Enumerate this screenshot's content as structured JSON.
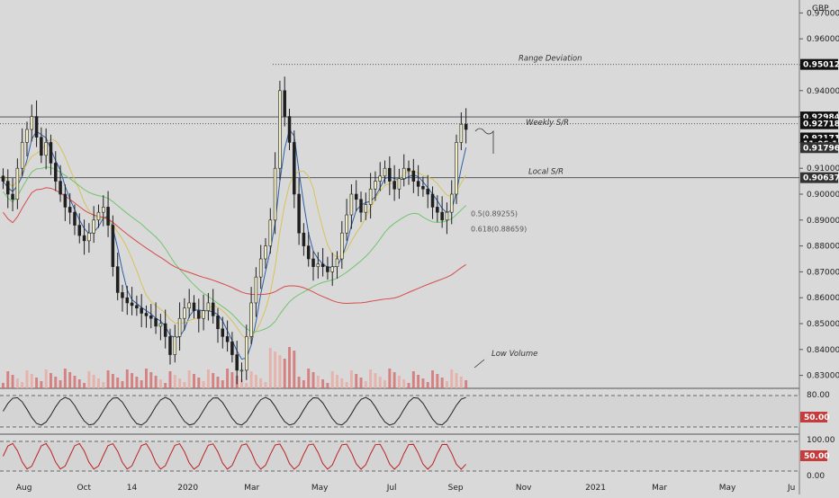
{
  "chart_data": {
    "type": "candlestick",
    "currency": "GBP",
    "y_axis": {
      "min": 0.825,
      "max": 0.975,
      "ticks": [
        "0.97000",
        "0.96000",
        "0.95000",
        "0.94000",
        "0.93000",
        "0.92000",
        "0.91000",
        "0.90000",
        "0.89000",
        "0.88000",
        "0.87000",
        "0.86000",
        "0.85000",
        "0.84000",
        "0.83000"
      ]
    },
    "x_axis": {
      "ticks": [
        {
          "label": "Aug",
          "t": 0.03
        },
        {
          "label": "Oct",
          "t": 0.105
        },
        {
          "label": "14",
          "t": 0.165
        },
        {
          "label": "2020",
          "t": 0.235
        },
        {
          "label": "Mar",
          "t": 0.315
        },
        {
          "label": "May",
          "t": 0.4
        },
        {
          "label": "Jul",
          "t": 0.49
        },
        {
          "label": "Sep",
          "t": 0.57
        },
        {
          "label": "Nov",
          "t": 0.655
        },
        {
          "label": "2021",
          "t": 0.745
        },
        {
          "label": "Mar",
          "t": 0.825
        },
        {
          "label": "May",
          "t": 0.91
        },
        {
          "label": "Ju",
          "t": 0.99
        }
      ]
    },
    "price_levels": [
      {
        "label": "Range Deviation",
        "value": 0.95012,
        "style": "dotted"
      },
      {
        "label": "Weekly S/R",
        "value": 0.92984,
        "style": "solid"
      },
      {
        "label": "",
        "value": 0.92718,
        "style": "dotted"
      },
      {
        "label": "Local S/R",
        "value": 0.90637,
        "style": "solid"
      }
    ],
    "price_tags": [
      {
        "value": "0.95012",
        "y": 0.95012,
        "bg": "#111111"
      },
      {
        "value": "0.92984",
        "y": 0.92984,
        "bg": "#111111"
      },
      {
        "value": "0.92718",
        "y": 0.92718,
        "bg": "#111111"
      },
      {
        "value": "0.92171",
        "y": 0.92171,
        "bg": "#111111"
      },
      {
        "value": "11:06:11",
        "y": 0.9195,
        "bg": "#111111"
      },
      {
        "value": "0.91796",
        "y": 0.91796,
        "bg": "#333333"
      },
      {
        "value": "0.90637",
        "y": 0.90637,
        "bg": "#333333"
      }
    ],
    "fib_levels": [
      {
        "label": "0.5(0.89255)",
        "value": 0.89255
      },
      {
        "label": "0.618(0.88659)",
        "value": 0.88659
      }
    ],
    "annotations": [
      {
        "text": "Range Deviation"
      },
      {
        "text": "Weekly S/R"
      },
      {
        "text": "Local S/R"
      },
      {
        "text": "Low Volume"
      }
    ],
    "closes": [
      0.905,
      0.9,
      0.898,
      0.91,
      0.92,
      0.925,
      0.93,
      0.922,
      0.915,
      0.92,
      0.912,
      0.905,
      0.9,
      0.895,
      0.893,
      0.888,
      0.884,
      0.882,
      0.885,
      0.89,
      0.893,
      0.895,
      0.888,
      0.872,
      0.862,
      0.86,
      0.858,
      0.857,
      0.856,
      0.854,
      0.853,
      0.852,
      0.849,
      0.85,
      0.845,
      0.838,
      0.845,
      0.852,
      0.856,
      0.858,
      0.855,
      0.852,
      0.855,
      0.858,
      0.853,
      0.848,
      0.845,
      0.843,
      0.838,
      0.832,
      0.832,
      0.845,
      0.858,
      0.868,
      0.875,
      0.88,
      0.89,
      0.91,
      0.94,
      0.93,
      0.92,
      0.9,
      0.885,
      0.88,
      0.875,
      0.872,
      0.873,
      0.872,
      0.87,
      0.872,
      0.875,
      0.885,
      0.892,
      0.9,
      0.898,
      0.893,
      0.896,
      0.902,
      0.905,
      0.907,
      0.91,
      0.905,
      0.902,
      0.906,
      0.91,
      0.909,
      0.905,
      0.903,
      0.902,
      0.9,
      0.895,
      0.893,
      0.89,
      0.893,
      0.9,
      0.92,
      0.927,
      0.925
    ],
    "rsi": {
      "levels": [
        "80.00",
        "50.00"
      ],
      "current": "50.00"
    },
    "stoch": {
      "levels": [
        "100.00",
        "50.00",
        "0.00"
      ],
      "current": "50.00"
    },
    "colors": {
      "up": "#f2f0c8",
      "down": "#1f1f1f",
      "ema_short": "#2b5ea8",
      "ema_mid": "#d6c35a",
      "ma_100": "#71c46e",
      "ma_200": "#d84b4b",
      "vol_up": "#e8a7a0",
      "vol_down": "#d46a6a",
      "badge": "#c63c3c"
    }
  }
}
